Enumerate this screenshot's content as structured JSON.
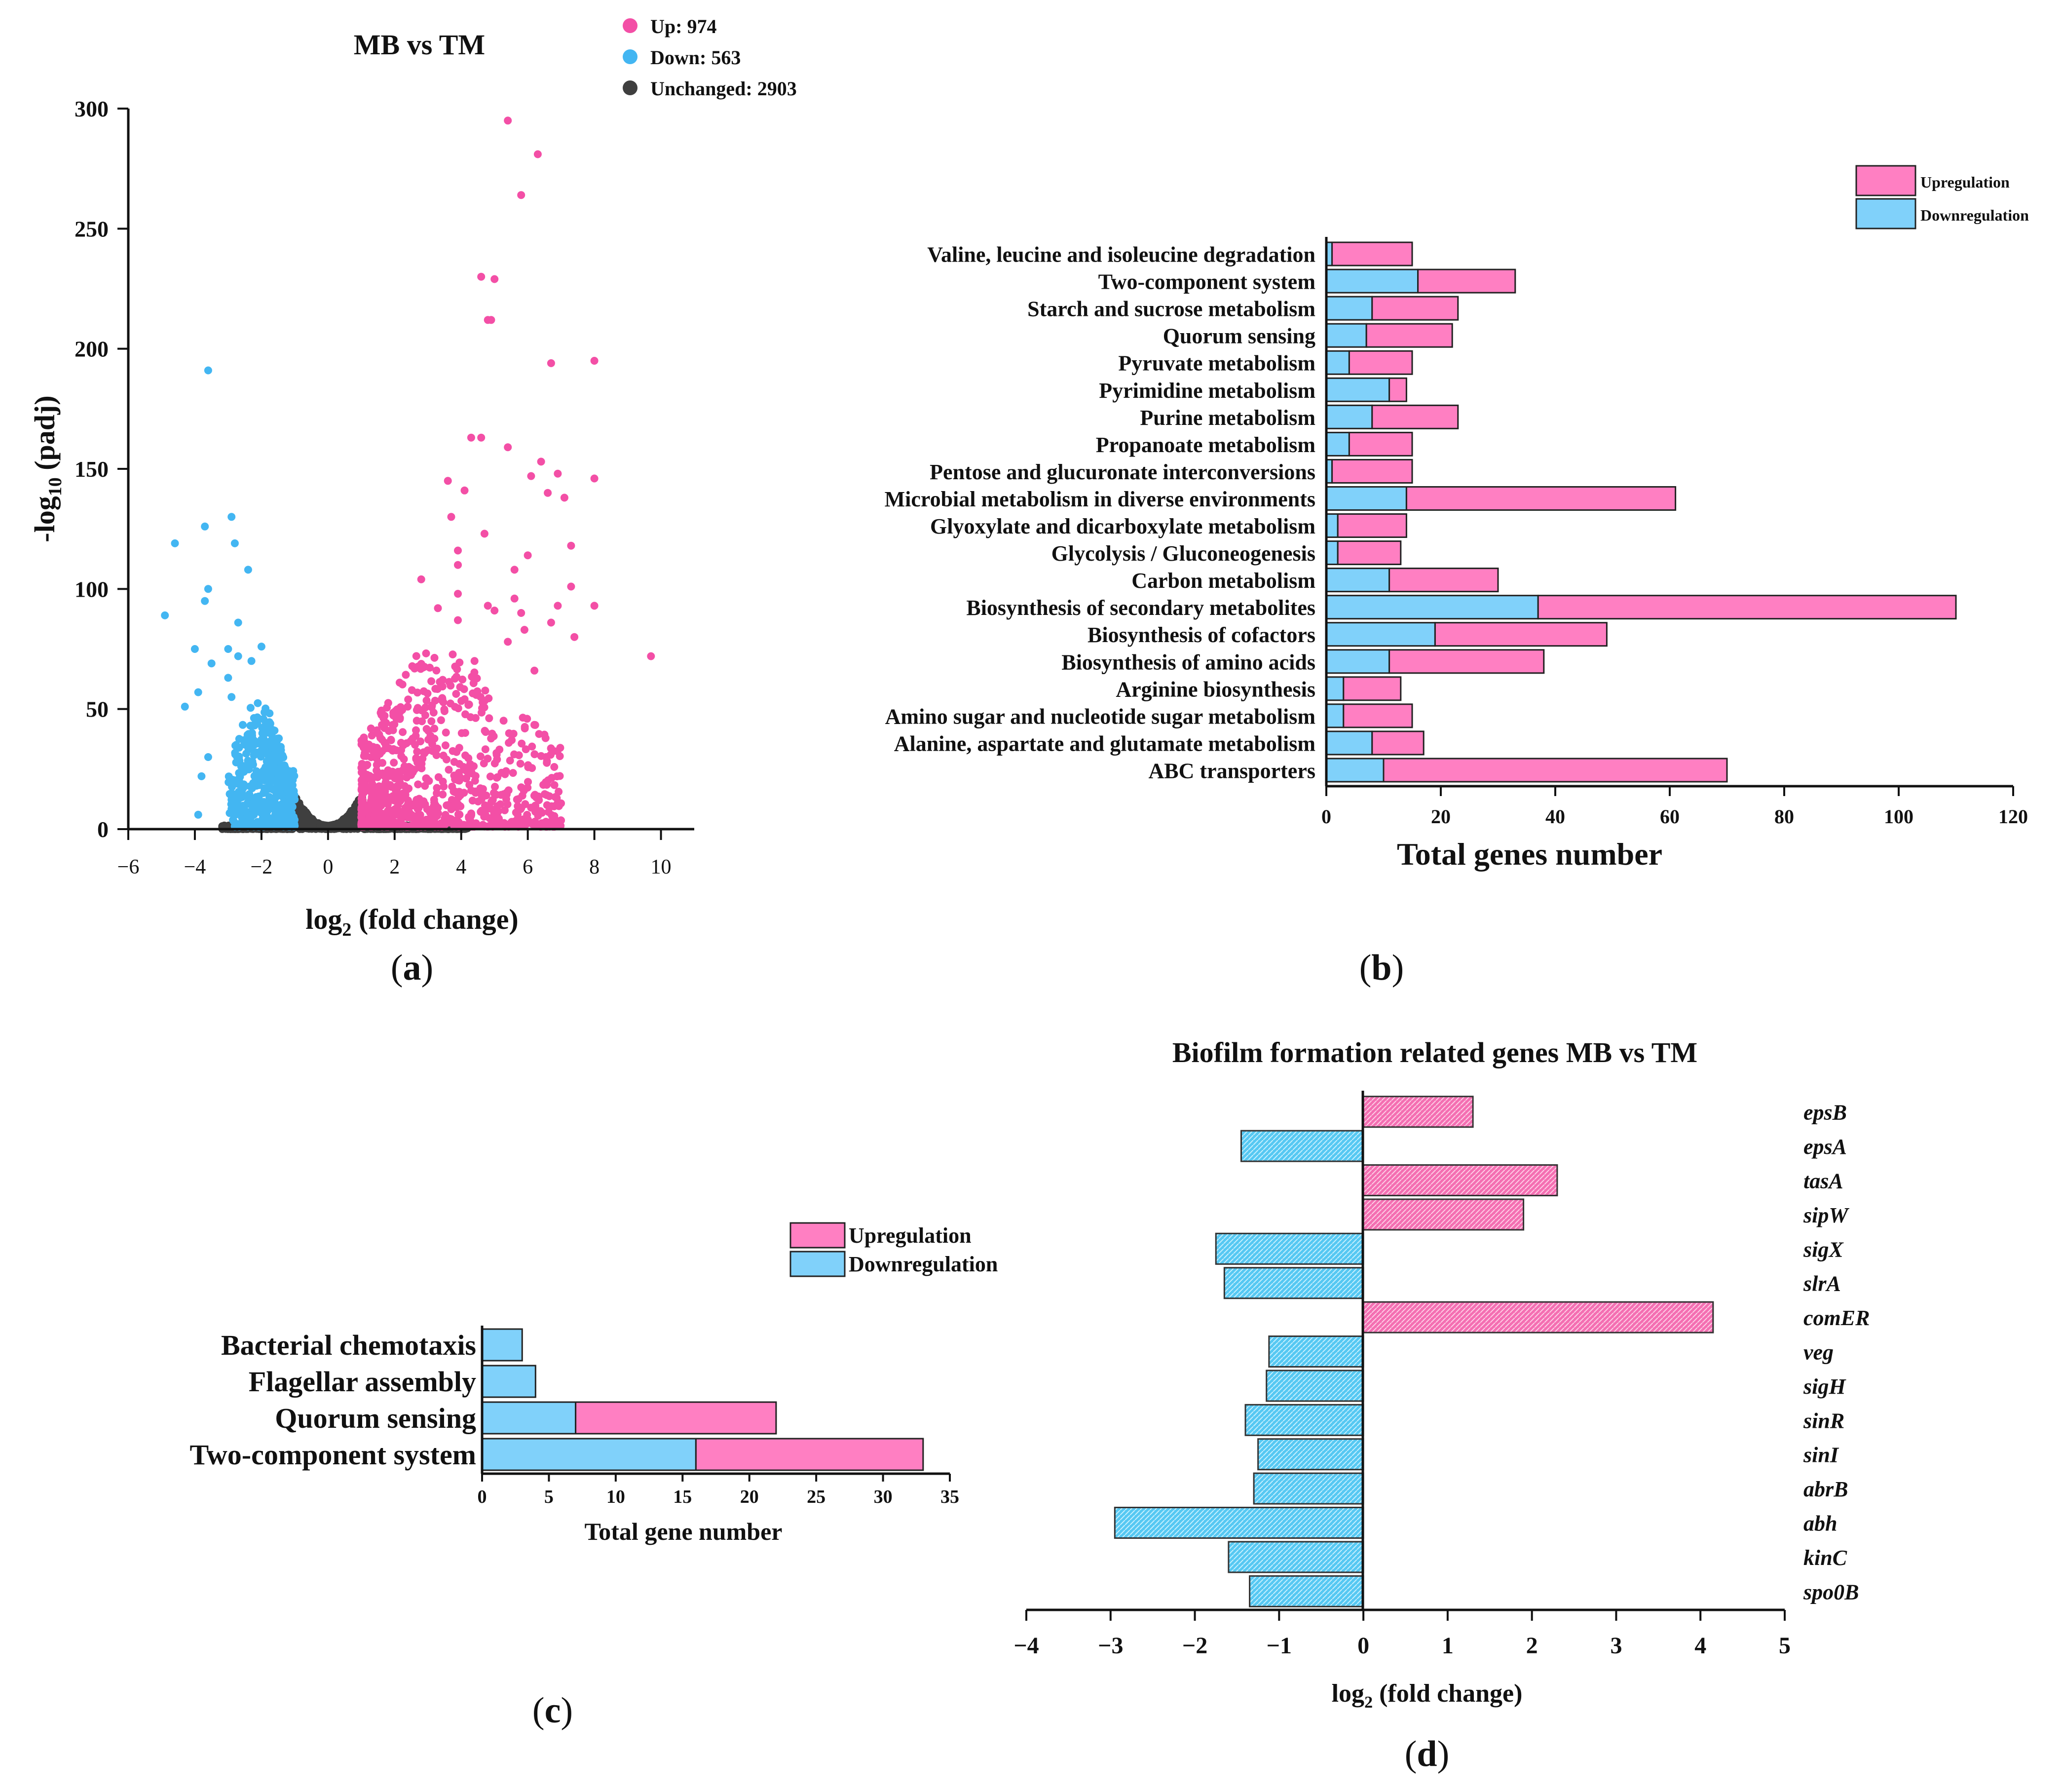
{
  "colors": {
    "up": "#f34fa6",
    "down": "#43b6f2",
    "unchanged": "#3f3f3f",
    "bar_up": "#ff7fc2",
    "bar_down": "#80d1fa"
  },
  "panels": {
    "a": "a",
    "b": "b",
    "c": "c",
    "d": "d"
  },
  "chart_data": [
    {
      "id": "a",
      "type": "scatter",
      "title": "MB vs TM",
      "xlabel": "log2 (fold change)",
      "ylabel": "-log10 (padj)",
      "xlim": [
        -6,
        11
      ],
      "ylim": [
        0,
        300
      ],
      "xticks": [
        -6,
        -4,
        -2,
        0,
        2,
        4,
        6,
        8,
        10
      ],
      "xtick_labels": [
        "−6",
        "−4",
        "−2",
        "0",
        "2",
        "4",
        "6",
        "8",
        "10"
      ],
      "yticks": [
        0,
        50,
        100,
        150,
        200,
        250,
        300
      ],
      "legend": [
        {
          "name": "Up",
          "label": "Up: 974",
          "count": 974,
          "color": "#f34fa6"
        },
        {
          "name": "Down",
          "label": "Down: 563",
          "count": 563,
          "color": "#43b6f2"
        },
        {
          "name": "Unchanged",
          "label": "Unchanged: 2903",
          "count": 2903,
          "color": "#3f3f3f"
        }
      ],
      "points": {
        "up": [
          [
            5.4,
            295
          ],
          [
            6.3,
            281
          ],
          [
            5.8,
            264
          ],
          [
            4.6,
            230
          ],
          [
            5.0,
            229
          ],
          [
            4.8,
            212
          ],
          [
            4.9,
            212
          ],
          [
            8.0,
            195
          ],
          [
            6.7,
            194
          ],
          [
            4.3,
            163
          ],
          [
            4.6,
            163
          ],
          [
            5.4,
            159
          ],
          [
            6.4,
            153
          ],
          [
            6.9,
            148
          ],
          [
            6.1,
            147
          ],
          [
            8.0,
            146
          ],
          [
            3.6,
            145
          ],
          [
            4.1,
            141
          ],
          [
            6.6,
            140
          ],
          [
            7.1,
            138
          ],
          [
            3.7,
            130
          ],
          [
            4.7,
            123
          ],
          [
            7.3,
            118
          ],
          [
            3.9,
            116
          ],
          [
            6.0,
            114
          ],
          [
            3.9,
            110
          ],
          [
            5.6,
            108
          ],
          [
            2.8,
            104
          ],
          [
            7.3,
            101
          ],
          [
            3.9,
            98
          ],
          [
            5.6,
            96
          ],
          [
            4.8,
            93
          ],
          [
            6.9,
            93
          ],
          [
            8.0,
            93
          ],
          [
            3.3,
            92
          ],
          [
            5.0,
            91
          ],
          [
            5.8,
            90
          ],
          [
            3.9,
            87
          ],
          [
            6.7,
            86
          ],
          [
            5.9,
            83
          ],
          [
            7.4,
            80
          ],
          [
            9.7,
            72
          ],
          [
            5.4,
            78
          ],
          [
            4.4,
            70
          ],
          [
            6.2,
            66
          ]
        ],
        "up_cloud": {
          "x": [
            1.0,
            7.0
          ],
          "ymax": 80,
          "n": 900,
          "seed": 11
        },
        "down": [
          [
            -3.6,
            191
          ],
          [
            -2.9,
            130
          ],
          [
            -3.7,
            126
          ],
          [
            -2.8,
            119
          ],
          [
            -4.6,
            119
          ],
          [
            -2.4,
            108
          ],
          [
            -3.6,
            100
          ],
          [
            -3.7,
            95
          ],
          [
            -4.9,
            89
          ],
          [
            -2.7,
            86
          ],
          [
            -4.0,
            75
          ],
          [
            -3.0,
            75
          ],
          [
            -2.7,
            72
          ],
          [
            -2.3,
            70
          ],
          [
            -2.0,
            76
          ],
          [
            -3.5,
            69
          ],
          [
            -3.0,
            63
          ],
          [
            -3.9,
            57
          ],
          [
            -4.3,
            51
          ],
          [
            -2.9,
            55
          ],
          [
            -3.6,
            30
          ],
          [
            -3.8,
            22
          ],
          [
            -3.9,
            6
          ]
        ],
        "down_cloud": {
          "x": [
            -3.0,
            -1.0
          ],
          "ymax": 52,
          "n": 520,
          "seed": 23
        },
        "unchanged_cloud": {
          "x": [
            -3.2,
            4.2
          ],
          "n": 2200,
          "seed": 37
        }
      }
    },
    {
      "id": "b",
      "type": "bar",
      "orientation": "horizontal",
      "stacked": true,
      "xlabel": "Total genes number",
      "xlim": [
        0,
        120
      ],
      "xticks": [
        0,
        20,
        40,
        60,
        80,
        100,
        120
      ],
      "categories": [
        "Valine, leucine and isoleucine degradation",
        "Two-component system",
        "Starch and sucrose metabolism",
        "Quorum sensing",
        "Pyruvate metabolism",
        "Pyrimidine metabolism",
        "Purine metabolism",
        "Propanoate metabolism",
        "Pentose and glucuronate interconversions",
        "Microbial metabolism in diverse environments",
        "Glyoxylate and dicarboxylate metabolism",
        "Glycolysis / Gluconeogenesis",
        "Carbon metabolism",
        "Biosynthesis of secondary metabolites",
        "Biosynthesis of cofactors",
        "Biosynthesis of amino acids",
        "Arginine biosynthesis",
        "Amino sugar and nucleotide sugar metabolism",
        "Alanine, aspartate and glutamate metabolism",
        "ABC transporters"
      ],
      "series": [
        {
          "name": "Downregulation",
          "values": [
            1,
            16,
            8,
            7,
            4,
            11,
            8,
            4,
            1,
            14,
            2,
            2,
            11,
            37,
            19,
            11,
            3,
            3,
            8,
            10
          ]
        },
        {
          "name": "Upregulation",
          "values": [
            14,
            17,
            15,
            15,
            11,
            3,
            15,
            11,
            14,
            47,
            12,
            11,
            19,
            73,
            30,
            27,
            10,
            12,
            9,
            60
          ]
        }
      ],
      "legend": [
        "Upregulation",
        "Downregulation"
      ]
    },
    {
      "id": "c",
      "type": "bar",
      "orientation": "horizontal",
      "stacked": true,
      "xlabel": "Total gene number",
      "xlim": [
        0,
        35
      ],
      "xticks": [
        0,
        5,
        10,
        15,
        20,
        25,
        30,
        35
      ],
      "categories": [
        "Bacterial chemotaxis",
        "Flagellar assembly",
        "Quorum sensing",
        "Two-component system"
      ],
      "series": [
        {
          "name": "Downregulation",
          "values": [
            3,
            4,
            7,
            16
          ]
        },
        {
          "name": "Upregulation",
          "values": [
            0,
            0,
            15,
            17
          ]
        }
      ],
      "legend": [
        "Upregulation",
        "Downregulation"
      ]
    },
    {
      "id": "d",
      "type": "bar",
      "orientation": "horizontal",
      "title": "Biofilm formation related genes  MB vs TM",
      "xlabel": "log2 (fold change)",
      "xlim": [
        -4,
        5
      ],
      "xticks": [
        -4,
        -3,
        -2,
        -1,
        0,
        1,
        2,
        3,
        4,
        5
      ],
      "xtick_labels": [
        "−4",
        "−3",
        "−2",
        "−1",
        "0",
        "1",
        "2",
        "3",
        "4",
        "5"
      ],
      "categories": [
        "epsB",
        "epsA",
        "tasA",
        "sipW",
        "sigX",
        "slrA",
        "comER",
        "veg",
        "sigH",
        "sinR",
        "sinI",
        "abrB",
        "abh",
        "kinC",
        "spo0B"
      ],
      "values": [
        1.3,
        -1.45,
        2.3,
        1.9,
        -1.75,
        -1.65,
        4.15,
        -1.12,
        -1.15,
        -1.4,
        -1.25,
        -1.3,
        -2.95,
        -1.6,
        -1.35
      ]
    }
  ]
}
